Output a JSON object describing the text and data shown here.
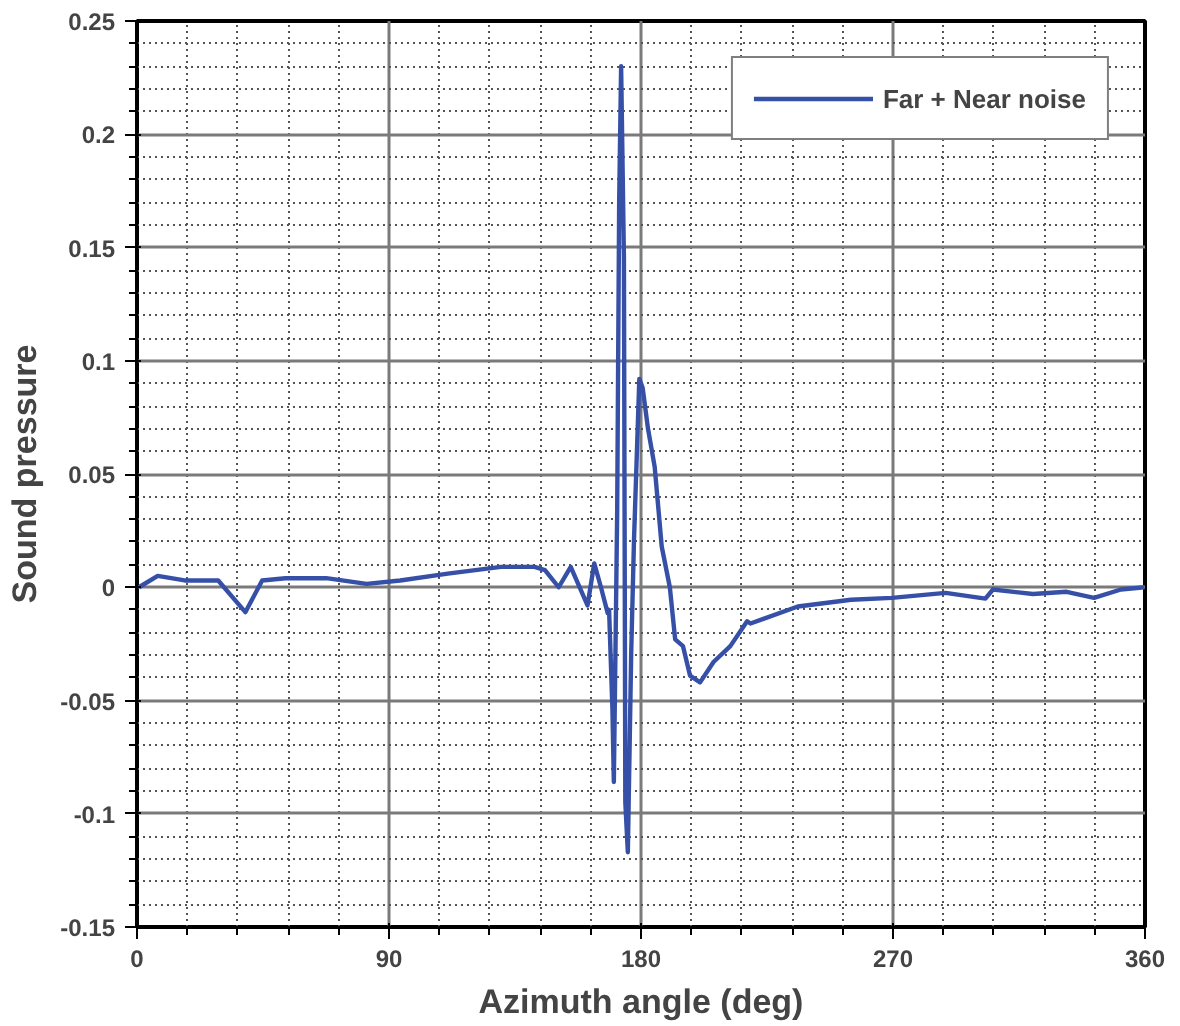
{
  "chart_data": {
    "type": "line",
    "xlabel": "Azimuth angle (deg)",
    "ylabel": "Sound pressure",
    "xlim": [
      0,
      360
    ],
    "xticks": [
      0,
      90,
      180,
      270,
      360
    ],
    "ylim": [
      -0.15,
      0.25
    ],
    "yticks": [
      -0.15,
      -0.1,
      -0.05,
      0,
      0.05,
      0.1,
      0.15,
      0.2,
      0.25
    ],
    "grid": true,
    "legend": "top right",
    "marker": "none",
    "line_style": "solid",
    "series": [
      {
        "name": "Far + Near noise",
        "color": "#3650a8",
        "x": [
          0.7,
          7.4,
          17,
          29,
          38.7,
          44.7,
          53,
          67.6,
          82,
          94,
          111,
          130,
          142,
          145.7,
          150.6,
          154.9,
          160.9,
          163.3,
          165.7,
          168.1,
          168.6,
          169.8,
          170.3,
          171.5,
          172.2,
          172.9,
          173.9,
          174.4,
          175.3,
          176.5,
          177.5,
          179.4,
          180.6,
          182.5,
          184.9,
          187.4,
          190.3,
          192.2,
          195,
          197.5,
          201.1,
          205.9,
          211.9,
          217.9,
          219.1,
          236,
          255,
          269.6,
          288.8,
          303,
          305.7,
          320,
          332,
          341.8,
          351.4,
          359.8
        ],
        "values": [
          0,
          0.005,
          0.003,
          0.003,
          -0.011,
          0.003,
          0.004,
          0.004,
          0.0015,
          0.003,
          0.006,
          0.009,
          0.009,
          0.0076,
          0,
          0.009,
          -0.008,
          0.0105,
          0,
          -0.0114,
          -0.01,
          -0.054,
          -0.086,
          0.034,
          0.17,
          0.23,
          0.146,
          -0.095,
          -0.117,
          -0.029,
          0.021,
          0.092,
          0.088,
          0.07,
          0.053,
          0.018,
          0,
          -0.023,
          -0.026,
          -0.039,
          -0.042,
          -0.033,
          -0.026,
          -0.015,
          -0.016,
          -0.0085,
          -0.0055,
          -0.0047,
          -0.0025,
          -0.005,
          -0.001,
          -0.003,
          -0.002,
          -0.0047,
          -0.001,
          0
        ]
      }
    ]
  }
}
